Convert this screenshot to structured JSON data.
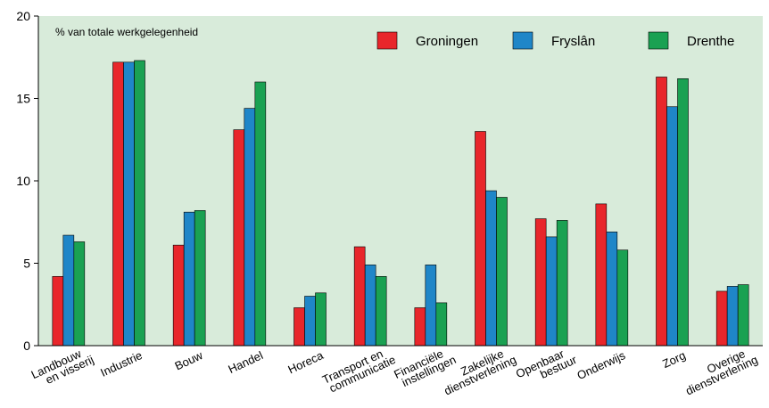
{
  "chart_data": {
    "type": "bar",
    "subtitle": "% van totale werkgelegenheid",
    "categories": [
      "Landbouw\nen visserij",
      "Industrie",
      "Bouw",
      "Handel",
      "Horeca",
      "Transport en\ncommunicatie",
      "Financiële\ninstellingen",
      "Zakelijke\ndienstverlening",
      "Openbaar\nbestuur",
      "Onderwijs",
      "Zorg",
      "Overige\ndienstverlening"
    ],
    "series": [
      {
        "name": "Groningen",
        "color": "#e8262b",
        "values": [
          4.2,
          17.2,
          6.1,
          13.1,
          2.3,
          6.0,
          2.3,
          13.0,
          7.7,
          8.6,
          16.3,
          3.3
        ]
      },
      {
        "name": "Fryslân",
        "color": "#1f86c8",
        "values": [
          6.7,
          17.2,
          8.1,
          14.4,
          3.0,
          4.9,
          4.9,
          9.4,
          6.6,
          6.9,
          14.5,
          3.6
        ]
      },
      {
        "name": "Drenthe",
        "color": "#1aa152",
        "values": [
          6.3,
          17.3,
          8.2,
          16.0,
          3.2,
          4.2,
          2.6,
          9.0,
          7.6,
          5.8,
          16.2,
          3.7
        ]
      }
    ],
    "ylim": [
      0,
      20
    ],
    "yticks": [
      0,
      5,
      10,
      15,
      20
    ],
    "background": "#d8ebda",
    "legend": "top-right"
  }
}
